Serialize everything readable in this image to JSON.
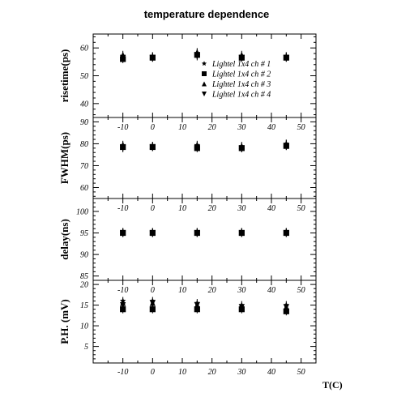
{
  "chart_data": {
    "type": "scatter",
    "title": "temperature dependence",
    "xlabel": "T(C)",
    "xlim": [
      -20,
      55
    ],
    "x_ticks": [
      -10,
      0,
      10,
      20,
      30,
      40,
      50
    ],
    "temperatures": [
      -10,
      0,
      15,
      30,
      45
    ],
    "legend": {
      "placement": "inside-right of top panel",
      "entries": [
        {
          "label": "Lightel 1x4 ch # 1",
          "marker": "star"
        },
        {
          "label": "Lightel 1x4 ch # 2",
          "marker": "square"
        },
        {
          "label": "Lightel 1x4 ch # 3",
          "marker": "triangle-up"
        },
        {
          "label": "Lightel 1x4 ch # 4",
          "marker": "triangle-down"
        }
      ]
    },
    "panels": [
      {
        "ylabel": "risetime(ps)",
        "ylim": [
          35,
          65
        ],
        "y_ticks": [
          40,
          50,
          60
        ],
        "show_x_tick_labels": false,
        "series": [
          {
            "name": "Lightel 1x4 ch # 1",
            "x": [
              -10,
              0,
              15,
              30,
              45
            ],
            "y": [
              57,
              57,
              58,
              57,
              57
            ]
          },
          {
            "name": "Lightel 1x4 ch # 2",
            "x": [
              -10,
              0,
              15,
              30,
              45
            ],
            "y": [
              56,
              56.5,
              57.5,
              56.5,
              56.5
            ]
          },
          {
            "name": "Lightel 1x4 ch # 3",
            "x": [
              -10,
              0,
              15,
              30,
              45
            ],
            "y": [
              57.5,
              57,
              58.5,
              57.5,
              57
            ]
          },
          {
            "name": "Lightel 1x4 ch # 4",
            "x": [
              -10,
              0,
              15,
              30,
              45
            ],
            "y": [
              56.5,
              56.5,
              57,
              56.5,
              56.5
            ]
          }
        ]
      },
      {
        "ylabel": "FWHM(ps)",
        "ylim": [
          55,
          92
        ],
        "y_ticks": [
          60,
          70,
          80,
          90
        ],
        "show_x_tick_labels": true,
        "series": [
          {
            "name": "Lightel 1x4 ch # 1",
            "x": [
              -10,
              0,
              15,
              30,
              45
            ],
            "y": [
              79,
              79,
              79,
              78.5,
              80
            ]
          },
          {
            "name": "Lightel 1x4 ch # 2",
            "x": [
              -10,
              0,
              15,
              30,
              45
            ],
            "y": [
              78.5,
              78.5,
              78,
              78,
              79
            ]
          },
          {
            "name": "Lightel 1x4 ch # 3",
            "x": [
              -10,
              0,
              15,
              30,
              45
            ],
            "y": [
              79.5,
              79,
              79.5,
              79,
              80
            ]
          },
          {
            "name": "Lightel 1x4 ch # 4",
            "x": [
              -10,
              0,
              15,
              30,
              45
            ],
            "y": [
              78,
              78.5,
              78.5,
              78,
              79
            ]
          }
        ]
      },
      {
        "ylabel": "delay(ns)",
        "ylim": [
          84,
          103
        ],
        "y_ticks": [
          85,
          90,
          95,
          100
        ],
        "show_x_tick_labels": true,
        "series": [
          {
            "name": "Lightel 1x4 ch # 1",
            "x": [
              -10,
              0,
              15,
              30,
              45
            ],
            "y": [
              95.2,
              95.2,
              95.2,
              95.2,
              95.2
            ]
          },
          {
            "name": "Lightel 1x4 ch # 2",
            "x": [
              -10,
              0,
              15,
              30,
              45
            ],
            "y": [
              95,
              95,
              95,
              95,
              95
            ]
          },
          {
            "name": "Lightel 1x4 ch # 3",
            "x": [
              -10,
              0,
              15,
              30,
              45
            ],
            "y": [
              95.2,
              95.2,
              95.2,
              95.2,
              95.2
            ]
          },
          {
            "name": "Lightel 1x4 ch # 4",
            "x": [
              -10,
              0,
              15,
              30,
              45
            ],
            "y": [
              95,
              95,
              95,
              95,
              95
            ]
          }
        ]
      },
      {
        "ylabel": "P.H. (mV)",
        "ylim": [
          1,
          21
        ],
        "y_ticks": [
          5,
          10,
          15,
          20
        ],
        "show_x_tick_labels": true,
        "series": [
          {
            "name": "Lightel 1x4 ch # 1",
            "x": [
              -10,
              0,
              15,
              30,
              45
            ],
            "y": [
              16,
              16,
              15.5,
              15,
              15
            ]
          },
          {
            "name": "Lightel 1x4 ch # 2",
            "x": [
              -10,
              0,
              15,
              30,
              45
            ],
            "y": [
              14,
              14,
              14,
              14,
              13.5
            ]
          },
          {
            "name": "Lightel 1x4 ch # 3",
            "x": [
              -10,
              0,
              15,
              30,
              45
            ],
            "y": [
              15.5,
              15.5,
              15,
              14.5,
              14.5
            ]
          },
          {
            "name": "Lightel 1x4 ch # 4",
            "x": [
              -10,
              0,
              15,
              30,
              45
            ],
            "y": [
              15,
              15.5,
              15,
              14.5,
              14.5
            ]
          }
        ]
      }
    ]
  }
}
